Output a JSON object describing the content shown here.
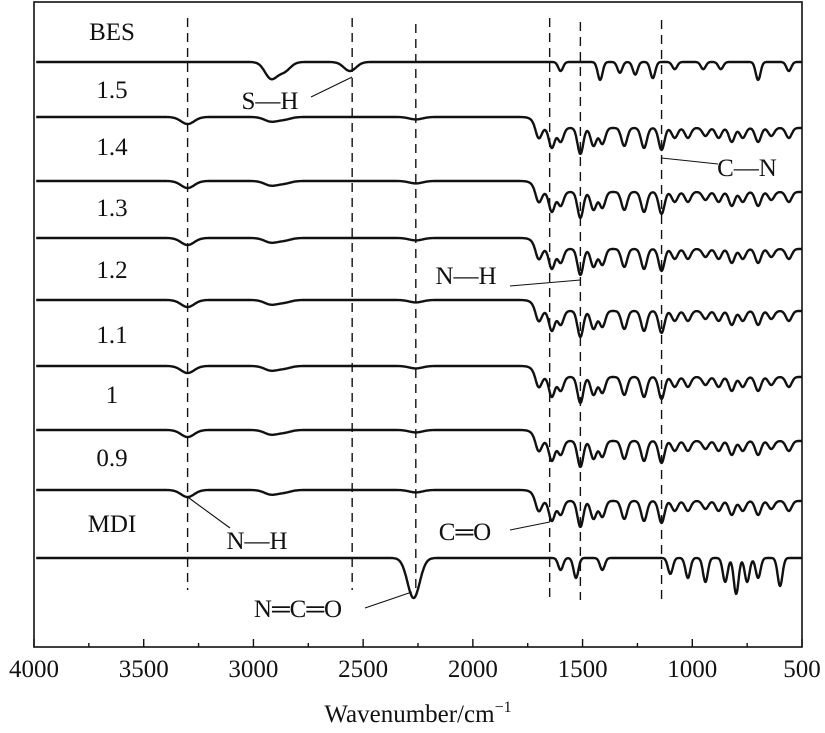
{
  "chart_data": {
    "type": "line",
    "title": "",
    "xlabel": "Wavenumber/cm",
    "xlabel_sup": "−1",
    "ylabel": "",
    "xlim": [
      4000,
      500
    ],
    "x_reversed": true,
    "x_ticks": [
      4000,
      3500,
      3000,
      2500,
      2000,
      1500,
      1000,
      500
    ],
    "y_ticks": false,
    "grid": false,
    "offset_stacked": true,
    "series": [
      {
        "name": "BES",
        "peaks": [
          {
            "x": 2920,
            "depth": 0.9
          },
          {
            "x": 2860,
            "depth": 0.5
          },
          {
            "x": 2560,
            "depth": 0.5
          },
          {
            "x": 1600,
            "depth": 0.5
          },
          {
            "x": 1420,
            "depth": 1.0
          },
          {
            "x": 1330,
            "depth": 0.6
          },
          {
            "x": 1260,
            "depth": 0.7
          },
          {
            "x": 1180,
            "depth": 0.9
          },
          {
            "x": 1080,
            "depth": 0.4
          },
          {
            "x": 950,
            "depth": 0.4
          },
          {
            "x": 870,
            "depth": 0.4
          },
          {
            "x": 700,
            "depth": 1.0
          },
          {
            "x": 560,
            "depth": 0.5
          }
        ]
      },
      {
        "name": "1.5",
        "peaks": []
      },
      {
        "name": "1.4",
        "peaks": []
      },
      {
        "name": "1.3",
        "peaks": []
      },
      {
        "name": "1.2",
        "peaks": []
      },
      {
        "name": "1.1",
        "peaks": []
      },
      {
        "name": "1",
        "peaks": []
      },
      {
        "name": "0.9",
        "peaks": []
      },
      {
        "name": "MDI",
        "peaks": [
          {
            "x": 2270,
            "depth": 1.0
          },
          {
            "x": 1600,
            "depth": 0.3
          },
          {
            "x": 1530,
            "depth": 0.5
          },
          {
            "x": 1410,
            "depth": 0.3
          },
          {
            "x": 1100,
            "depth": 0.4
          },
          {
            "x": 1020,
            "depth": 0.5
          },
          {
            "x": 940,
            "depth": 0.6
          },
          {
            "x": 850,
            "depth": 0.6
          },
          {
            "x": 800,
            "depth": 0.9
          },
          {
            "x": 750,
            "depth": 0.6
          },
          {
            "x": 700,
            "depth": 0.5
          },
          {
            "x": 600,
            "depth": 0.7
          }
        ]
      }
    ],
    "pu_peaks": [
      {
        "x": 3300,
        "depth": 0.35
      },
      {
        "x": 2920,
        "depth": 0.22
      },
      {
        "x": 2860,
        "depth": 0.12
      },
      {
        "x": 2260,
        "depth": 0.12
      },
      {
        "x": 1700,
        "depth": 0.6
      },
      {
        "x": 1640,
        "depth": 1.0
      },
      {
        "x": 1600,
        "depth": 0.7
      },
      {
        "x": 1510,
        "depth": 1.3
      },
      {
        "x": 1450,
        "depth": 0.9
      },
      {
        "x": 1410,
        "depth": 0.8
      },
      {
        "x": 1310,
        "depth": 0.9
      },
      {
        "x": 1220,
        "depth": 1.0
      },
      {
        "x": 1140,
        "depth": 1.1
      },
      {
        "x": 1080,
        "depth": 0.5
      },
      {
        "x": 1020,
        "depth": 0.5
      },
      {
        "x": 940,
        "depth": 0.4
      },
      {
        "x": 880,
        "depth": 0.5
      },
      {
        "x": 820,
        "depth": 0.7
      },
      {
        "x": 770,
        "depth": 0.5
      },
      {
        "x": 700,
        "depth": 0.7
      },
      {
        "x": 640,
        "depth": 0.4
      },
      {
        "x": 560,
        "depth": 0.5
      }
    ],
    "reference_lines": [
      3300,
      2550,
      2260,
      1650,
      1510,
      1140
    ],
    "annotations": [
      {
        "text": "S—H",
        "x": 2550
      },
      {
        "text": "C—N",
        "x": 1140
      },
      {
        "text": "N—H",
        "x": 1510
      },
      {
        "text": "N—H",
        "x": 3300
      },
      {
        "text": "C═O",
        "x": 1650
      },
      {
        "text": "N═C═O",
        "x": 2260
      }
    ]
  }
}
